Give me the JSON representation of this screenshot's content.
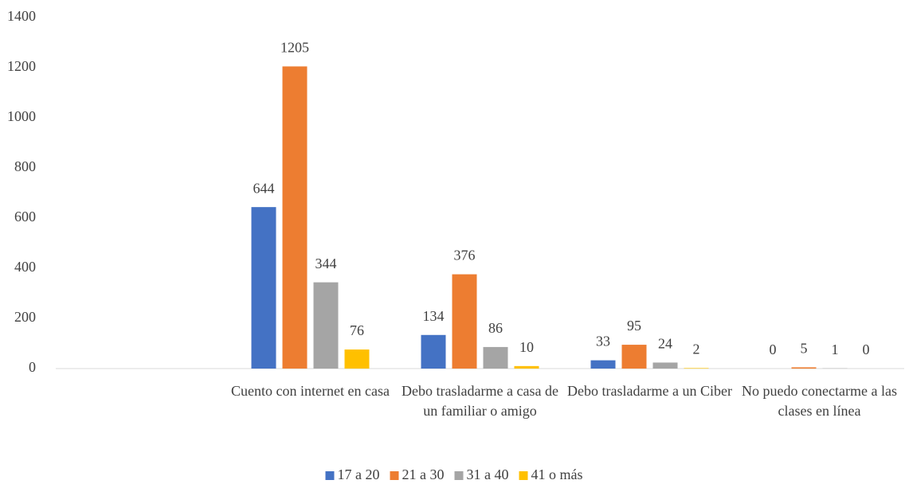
{
  "chart_data": {
    "type": "bar",
    "categories": [
      null,
      "Cuento con internet en casa",
      "Debo trasladarme a casa de un familiar o amigo",
      "Debo trasladarme a un Ciber",
      "No puedo conectarme a las clases en línea"
    ],
    "series": [
      {
        "name": "17 a 20",
        "color": "#4472c4",
        "values": [
          null,
          644,
          134,
          33,
          0
        ]
      },
      {
        "name": "21 a 30",
        "color": "#ed7d31",
        "values": [
          null,
          1205,
          376,
          95,
          5
        ]
      },
      {
        "name": "31 a 40",
        "color": "#a5a5a5",
        "values": [
          null,
          344,
          86,
          24,
          1
        ]
      },
      {
        "name": "41 o más",
        "color": "#ffc000",
        "values": [
          null,
          76,
          10,
          2,
          0
        ]
      }
    ],
    "ylim": [
      0,
      1400
    ],
    "yticks": [
      0,
      200,
      400,
      600,
      800,
      1000,
      1200,
      1400
    ],
    "grid": false,
    "legend": "bottom"
  }
}
